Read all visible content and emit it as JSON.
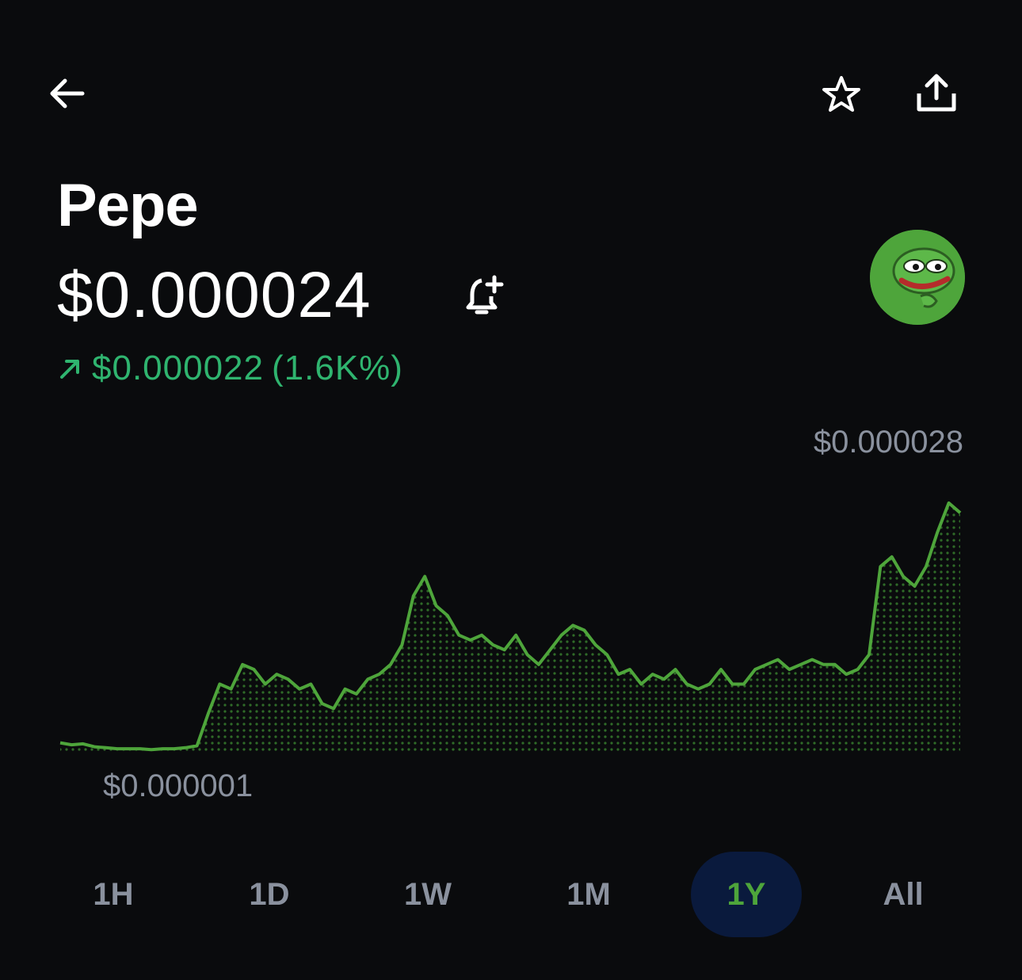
{
  "header": {
    "back_icon": "arrow-left-icon",
    "favorite_icon": "star-outline-icon",
    "share_icon": "share-upload-icon"
  },
  "asset": {
    "name": "Pepe",
    "price": "$0.000024",
    "alert_icon": "bell-plus-icon",
    "avatar_icon": "pepe-frog-avatar",
    "change_arrow_icon": "arrow-up-right-icon",
    "change_value": "$0.000022",
    "change_percent": "(1.6K%)",
    "change_color": "#2fb46f"
  },
  "chart": {
    "high_label": "$0.000028",
    "low_label": "$0.000001",
    "line_color": "#4ea53b"
  },
  "chart_data": {
    "type": "area",
    "high": 2.8e-05,
    "low": 1e-06,
    "values": [
      1.0,
      0.8,
      0.9,
      0.6,
      0.5,
      0.4,
      0.4,
      0.4,
      0.3,
      0.4,
      0.4,
      0.5,
      0.7,
      4.0,
      7.0,
      6.5,
      9.0,
      8.5,
      7.0,
      8.0,
      7.5,
      6.5,
      7.0,
      5.0,
      4.5,
      6.5,
      6.0,
      7.5,
      8.0,
      9.0,
      11.0,
      16.0,
      18.0,
      15.0,
      14.0,
      12.0,
      11.5,
      12.0,
      11.0,
      10.5,
      12.0,
      10.0,
      9.0,
      10.5,
      12.0,
      13.0,
      12.5,
      11.0,
      10.0,
      8.0,
      8.5,
      7.0,
      8.0,
      7.5,
      8.5,
      7.0,
      6.5,
      7.0,
      8.5,
      7.0,
      7.0,
      8.5,
      9.0,
      9.5,
      8.5,
      9.0,
      9.5,
      9.0,
      9.0,
      8.0,
      8.5,
      10.0,
      19.0,
      20.0,
      18.0,
      17.0,
      19.0,
      22.5,
      25.5,
      24.5
    ]
  },
  "ranges": {
    "items": [
      "1H",
      "1D",
      "1W",
      "1M",
      "1Y",
      "All"
    ],
    "active": "1Y"
  }
}
